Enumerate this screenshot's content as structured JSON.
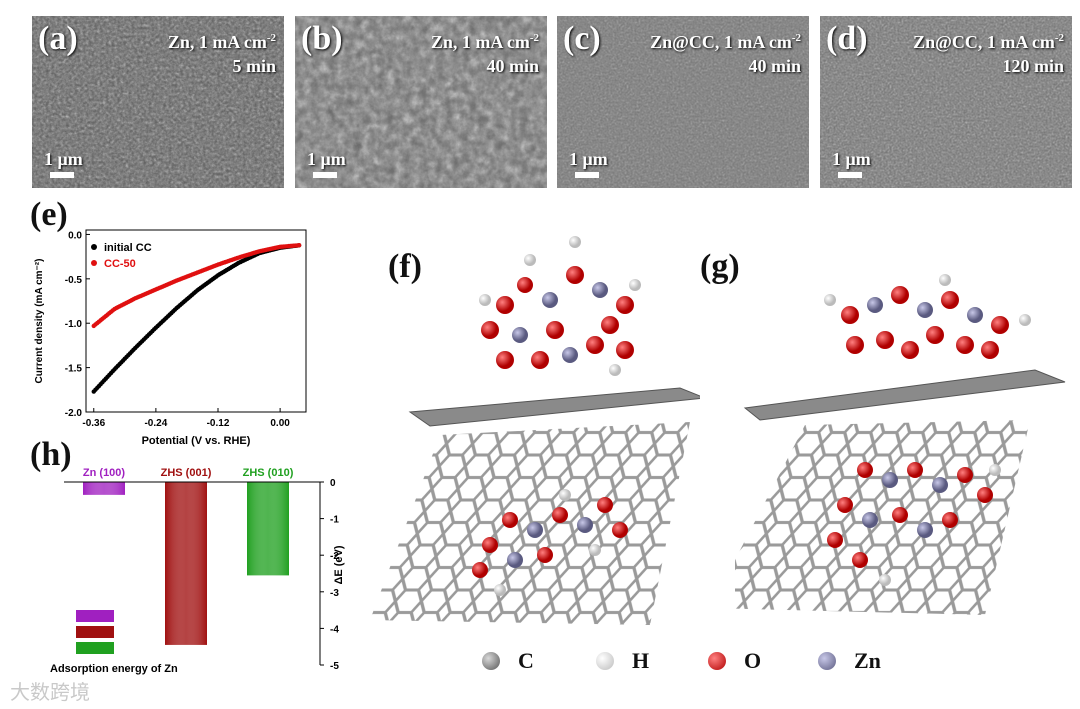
{
  "sem_panels": [
    {
      "letter": "(a)",
      "condition": "Zn, 1 mA cm",
      "sup": "-2",
      "time": "5 min",
      "scale": "1 μm"
    },
    {
      "letter": "(b)",
      "condition": "Zn, 1 mA cm",
      "sup": "-2",
      "time": "40 min",
      "scale": "1 μm"
    },
    {
      "letter": "(c)",
      "condition": "Zn@CC, 1 mA cm",
      "sup": "-2",
      "time": "40 min",
      "scale": "1 μm"
    },
    {
      "letter": "(d)",
      "condition": "Zn@CC, 1 mA cm",
      "sup": "-2",
      "time": "120 min",
      "scale": "1 μm"
    }
  ],
  "panel_letters": {
    "e": "(e)",
    "f": "(f)",
    "g": "(g)",
    "h": "(h)"
  },
  "chart_data": [
    {
      "type": "line",
      "panel": "(e)",
      "xlabel": "Potential (V vs. RHE)",
      "ylabel": "Current density (mA cm⁻²)",
      "xlim": [
        -0.375,
        0.05
      ],
      "ylim": [
        -2.0,
        0.05
      ],
      "xticks": [
        "-0.36",
        "-0.24",
        "-0.12",
        "0.00"
      ],
      "yticks": [
        "0.0",
        "-0.5",
        "-1.0",
        "-1.5",
        "-2.0"
      ],
      "legend_position": "top-left",
      "series": [
        {
          "name": "initial CC",
          "color": "#000000",
          "x": [
            -0.36,
            -0.32,
            -0.28,
            -0.24,
            -0.2,
            -0.16,
            -0.12,
            -0.08,
            -0.04,
            0.0,
            0.04
          ],
          "y": [
            -1.77,
            -1.52,
            -1.28,
            -1.05,
            -0.83,
            -0.63,
            -0.46,
            -0.32,
            -0.21,
            -0.15,
            -0.12
          ]
        },
        {
          "name": "CC-50",
          "color": "#e01010",
          "x": [
            -0.36,
            -0.32,
            -0.28,
            -0.24,
            -0.2,
            -0.16,
            -0.12,
            -0.08,
            -0.04,
            0.0,
            0.04
          ],
          "y": [
            -1.03,
            -0.84,
            -0.72,
            -0.62,
            -0.52,
            -0.43,
            -0.34,
            -0.26,
            -0.19,
            -0.14,
            -0.12
          ]
        }
      ]
    },
    {
      "type": "bar",
      "panel": "(h)",
      "categories": [
        "Zn (100)",
        "ZHS (001)",
        "ZHS (010)"
      ],
      "values": [
        -0.35,
        -4.45,
        -2.55
      ],
      "colors": [
        "#a020c0",
        "#a01010",
        "#20a020"
      ],
      "ylabel": "ΔE (eV)",
      "ylim": [
        -5,
        0
      ],
      "yticks": [
        "0",
        "-1",
        "-2",
        "-3",
        "-4",
        "-5"
      ],
      "xlabel": "Adsorption energy of Zn"
    }
  ],
  "element_legend": [
    {
      "symbol": "C",
      "color": "#7a7a7a"
    },
    {
      "symbol": "H",
      "color": "#f2f2f2"
    },
    {
      "symbol": "O",
      "color": "#e01818"
    },
    {
      "symbol": "Zn",
      "color": "#8a8ab0"
    }
  ],
  "watermark": "大数跨境"
}
